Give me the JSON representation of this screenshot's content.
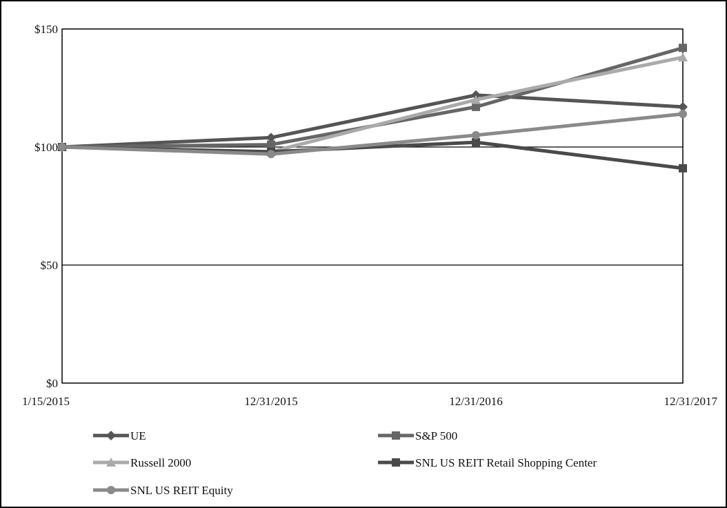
{
  "chart_data": {
    "type": "line",
    "title": "",
    "xlabel": "",
    "ylabel": "",
    "categories": [
      "1/15/2015",
      "12/31/2015",
      "12/31/2016",
      "12/31/2017"
    ],
    "ylim": [
      0,
      150
    ],
    "y_ticks": [
      0,
      50,
      100,
      150
    ],
    "y_tick_labels": [
      "$0",
      "$50",
      "$100",
      "$150"
    ],
    "grid": "horizontal",
    "legend_position": "bottom",
    "series": [
      {
        "name": "UE",
        "marker": "diamond",
        "color": "#555555",
        "values": [
          100,
          104,
          122,
          117
        ]
      },
      {
        "name": "S&P 500",
        "marker": "square",
        "color": "#666666",
        "values": [
          100,
          101,
          117,
          142
        ]
      },
      {
        "name": "Russell 2000",
        "marker": "triangle",
        "color": "#aaaaaa",
        "values": [
          100,
          98,
          120,
          138
        ]
      },
      {
        "name": "SNL US REIT Retail Shopping Center",
        "marker": "square",
        "color": "#4a4a4a",
        "values": [
          100,
          98,
          102,
          91
        ]
      },
      {
        "name": "SNL US REIT Equity",
        "marker": "circle",
        "color": "#8a8a8a",
        "values": [
          100,
          97,
          105,
          114
        ]
      }
    ]
  }
}
